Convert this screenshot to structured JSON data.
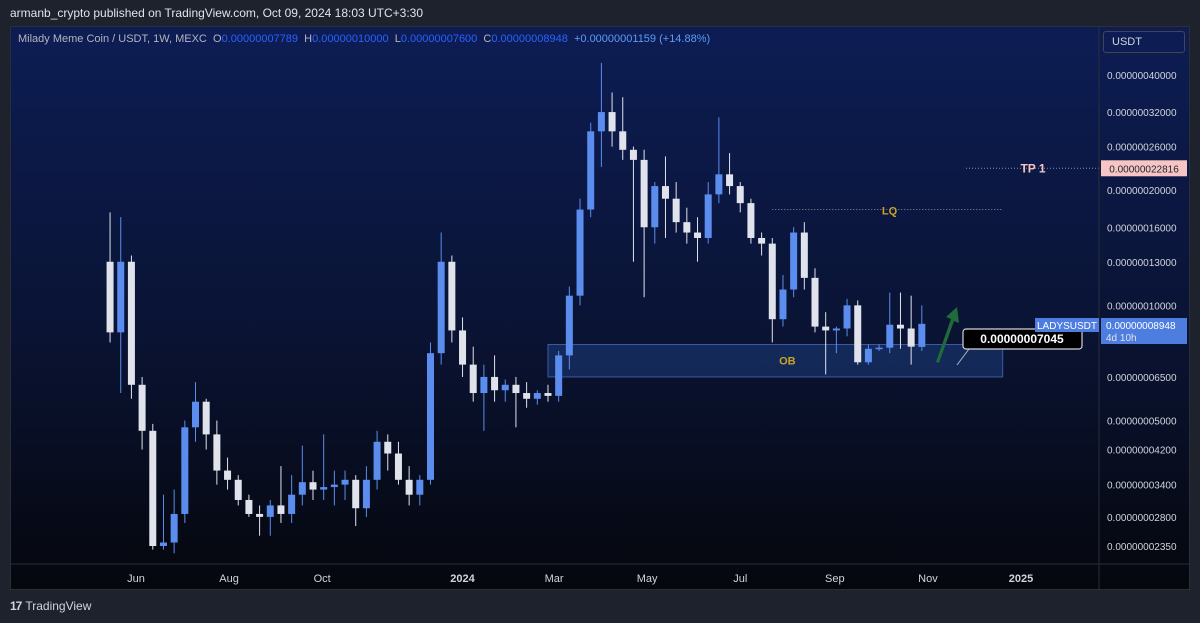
{
  "header": {
    "text": "armanb_crypto published on TradingView.com, Oct 09, 2024 18:03 UTC+3:30"
  },
  "legend": {
    "symbol": "Milady Meme Coin / USDT, 1W, MEXC",
    "open_label": "O",
    "open": "0.00000007789",
    "high_label": "H",
    "high": "0.00000010000",
    "low_label": "L",
    "low": "0.00000007600",
    "close_label": "C",
    "close": "0.00000008948",
    "change": "+0.00000001159 (+14.88%)"
  },
  "currency_button": "USDT",
  "footer": {
    "logo_mark": "17",
    "brand": "TradingView"
  },
  "colors": {
    "up": "#5b8def",
    "down": "#e0e3eb",
    "ob_zone": "#1c3d7a",
    "tp_label": "#f7c6c4",
    "arrow": "#1f6b3a"
  },
  "chart_data": {
    "type": "candlestick",
    "scale": "log",
    "y_ticks": [
      "0.00000040000",
      "0.00000032000",
      "0.00000026000",
      "0.00000020000",
      "0.00000016000",
      "0.00000013000",
      "0.00000010000",
      "0.00000006500",
      "0.00000005000",
      "0.00000004200",
      "0.00000003400",
      "0.00000002800",
      "0.00000002350"
    ],
    "y_tick_values": [
      4e-07,
      3.2e-07,
      2.6e-07,
      2e-07,
      1.6e-07,
      1.3e-07,
      1e-07,
      6.5e-08,
      5e-08,
      4.2e-08,
      3.4e-08,
      2.8e-08,
      2.35e-08
    ],
    "x_ticks": [
      "Jun",
      "Aug",
      "Oct",
      "2024",
      "Mar",
      "May",
      "Jul",
      "Sep",
      "Nov",
      "2025"
    ],
    "x_tick_dates": [
      "2023-06-01",
      "2023-08-01",
      "2023-10-01",
      "2024-01-01",
      "2024-03-01",
      "2024-05-01",
      "2024-07-01",
      "2024-09-01",
      "2024-11-01",
      "2025-01-01"
    ],
    "candles": [
      {
        "t": "2023-05-15",
        "o": 1.3e-07,
        "h": 1.75e-07,
        "l": 8e-08,
        "c": 8.5e-08
      },
      {
        "t": "2023-05-22",
        "o": 8.5e-08,
        "h": 1.7e-07,
        "l": 5.9e-08,
        "c": 1.3e-07
      },
      {
        "t": "2023-05-29",
        "o": 1.3e-07,
        "h": 1.35e-07,
        "l": 5.7e-08,
        "c": 6.2e-08
      },
      {
        "t": "2023-06-05",
        "o": 6.2e-08,
        "h": 6.5e-08,
        "l": 4.2e-08,
        "c": 4.7e-08
      },
      {
        "t": "2023-06-12",
        "o": 4.7e-08,
        "h": 4.9e-08,
        "l": 2.3e-08,
        "c": 2.35e-08
      },
      {
        "t": "2023-06-19",
        "o": 2.35e-08,
        "h": 3.2e-08,
        "l": 2.3e-08,
        "c": 2.4e-08
      },
      {
        "t": "2023-06-26",
        "o": 2.4e-08,
        "h": 3.3e-08,
        "l": 2.25e-08,
        "c": 2.85e-08
      },
      {
        "t": "2023-07-03",
        "o": 2.85e-08,
        "h": 5e-08,
        "l": 2.7e-08,
        "c": 4.8e-08
      },
      {
        "t": "2023-07-10",
        "o": 4.8e-08,
        "h": 6.3e-08,
        "l": 4.4e-08,
        "c": 5.6e-08
      },
      {
        "t": "2023-07-17",
        "o": 5.6e-08,
        "h": 5.7e-08,
        "l": 4.2e-08,
        "c": 4.6e-08
      },
      {
        "t": "2023-07-24",
        "o": 4.6e-08,
        "h": 5e-08,
        "l": 3.4e-08,
        "c": 3.7e-08
      },
      {
        "t": "2023-07-31",
        "o": 3.7e-08,
        "h": 4e-08,
        "l": 3.3e-08,
        "c": 3.5e-08
      },
      {
        "t": "2023-08-07",
        "o": 3.5e-08,
        "h": 3.6e-08,
        "l": 3e-08,
        "c": 3.1e-08
      },
      {
        "t": "2023-08-14",
        "o": 3.1e-08,
        "h": 3.2e-08,
        "l": 2.8e-08,
        "c": 2.85e-08
      },
      {
        "t": "2023-08-21",
        "o": 2.85e-08,
        "h": 3e-08,
        "l": 2.5e-08,
        "c": 2.8e-08
      },
      {
        "t": "2023-08-28",
        "o": 2.8e-08,
        "h": 3.1e-08,
        "l": 2.5e-08,
        "c": 3e-08
      },
      {
        "t": "2023-09-04",
        "o": 3e-08,
        "h": 3.8e-08,
        "l": 2.7e-08,
        "c": 2.85e-08
      },
      {
        "t": "2023-09-11",
        "o": 2.85e-08,
        "h": 3.6e-08,
        "l": 2.7e-08,
        "c": 3.2e-08
      },
      {
        "t": "2023-09-18",
        "o": 3.2e-08,
        "h": 4.3e-08,
        "l": 3e-08,
        "c": 3.45e-08
      },
      {
        "t": "2023-09-25",
        "o": 3.45e-08,
        "h": 3.7e-08,
        "l": 3.1e-08,
        "c": 3.3e-08
      },
      {
        "t": "2023-10-02",
        "o": 3.3e-08,
        "h": 4.6e-08,
        "l": 3.1e-08,
        "c": 3.35e-08
      },
      {
        "t": "2023-10-09",
        "o": 3.35e-08,
        "h": 3.7e-08,
        "l": 3e-08,
        "c": 3.4e-08
      },
      {
        "t": "2023-10-16",
        "o": 3.4e-08,
        "h": 3.7e-08,
        "l": 3.1e-08,
        "c": 3.5e-08
      },
      {
        "t": "2023-10-23",
        "o": 3.5e-08,
        "h": 3.6e-08,
        "l": 2.65e-08,
        "c": 2.95e-08
      },
      {
        "t": "2023-10-30",
        "o": 2.95e-08,
        "h": 3.8e-08,
        "l": 2.8e-08,
        "c": 3.5e-08
      },
      {
        "t": "2023-11-06",
        "o": 3.5e-08,
        "h": 4.7e-08,
        "l": 3.3e-08,
        "c": 4.4e-08
      },
      {
        "t": "2023-11-13",
        "o": 4.4e-08,
        "h": 4.6e-08,
        "l": 3.7e-08,
        "c": 4.1e-08
      },
      {
        "t": "2023-11-20",
        "o": 4.1e-08,
        "h": 4.4e-08,
        "l": 3.4e-08,
        "c": 3.5e-08
      },
      {
        "t": "2023-11-27",
        "o": 3.5e-08,
        "h": 3.8e-08,
        "l": 3e-08,
        "c": 3.2e-08
      },
      {
        "t": "2023-12-04",
        "o": 3.2e-08,
        "h": 3.6e-08,
        "l": 3e-08,
        "c": 3.5e-08
      },
      {
        "t": "2023-12-11",
        "o": 3.5e-08,
        "h": 8e-08,
        "l": 3.4e-08,
        "c": 7.5e-08
      },
      {
        "t": "2023-12-18",
        "o": 7.5e-08,
        "h": 1.55e-07,
        "l": 7e-08,
        "c": 1.3e-07
      },
      {
        "t": "2023-12-25",
        "o": 1.3e-07,
        "h": 1.35e-07,
        "l": 8e-08,
        "c": 8.6e-08
      },
      {
        "t": "2024-01-01",
        "o": 8.6e-08,
        "h": 9.3e-08,
        "l": 6.5e-08,
        "c": 7e-08
      },
      {
        "t": "2024-01-08",
        "o": 7e-08,
        "h": 7.8e-08,
        "l": 5.6e-08,
        "c": 5.9e-08
      },
      {
        "t": "2024-01-15",
        "o": 5.9e-08,
        "h": 7e-08,
        "l": 4.7e-08,
        "c": 6.5e-08
      },
      {
        "t": "2024-01-22",
        "o": 6.5e-08,
        "h": 7.4e-08,
        "l": 5.6e-08,
        "c": 6e-08
      },
      {
        "t": "2024-01-29",
        "o": 6e-08,
        "h": 6.4e-08,
        "l": 5.6e-08,
        "c": 6.2e-08
      },
      {
        "t": "2024-02-05",
        "o": 6.2e-08,
        "h": 6.5e-08,
        "l": 4.8e-08,
        "c": 5.9e-08
      },
      {
        "t": "2024-02-12",
        "o": 5.9e-08,
        "h": 6.3e-08,
        "l": 5.4e-08,
        "c": 5.7e-08
      },
      {
        "t": "2024-02-19",
        "o": 5.7e-08,
        "h": 6e-08,
        "l": 5.5e-08,
        "c": 5.9e-08
      },
      {
        "t": "2024-02-26",
        "o": 5.9e-08,
        "h": 6.2e-08,
        "l": 5.6e-08,
        "c": 5.8e-08
      },
      {
        "t": "2024-03-04",
        "o": 5.8e-08,
        "h": 7.6e-08,
        "l": 5.6e-08,
        "c": 7.4e-08
      },
      {
        "t": "2024-03-11",
        "o": 7.4e-08,
        "h": 1.12e-07,
        "l": 6.8e-08,
        "c": 1.06e-07
      },
      {
        "t": "2024-03-18",
        "o": 1.06e-07,
        "h": 1.9e-07,
        "l": 1e-07,
        "c": 1.78e-07
      },
      {
        "t": "2024-03-25",
        "o": 1.78e-07,
        "h": 3e-07,
        "l": 1.7e-07,
        "c": 2.85e-07
      },
      {
        "t": "2024-04-01",
        "o": 2.85e-07,
        "h": 4.3e-07,
        "l": 2.3e-07,
        "c": 3.2e-07
      },
      {
        "t": "2024-04-08",
        "o": 3.2e-07,
        "h": 3.6e-07,
        "l": 2.6e-07,
        "c": 2.85e-07
      },
      {
        "t": "2024-04-15",
        "o": 2.85e-07,
        "h": 3.5e-07,
        "l": 2.4e-07,
        "c": 2.55e-07
      },
      {
        "t": "2024-04-22",
        "o": 2.55e-07,
        "h": 2.6e-07,
        "l": 1.3e-07,
        "c": 2.4e-07
      },
      {
        "t": "2024-04-29",
        "o": 2.4e-07,
        "h": 2.55e-07,
        "l": 1.05e-07,
        "c": 1.6e-07
      },
      {
        "t": "2024-05-06",
        "o": 1.6e-07,
        "h": 2.1e-07,
        "l": 1.45e-07,
        "c": 2.05e-07
      },
      {
        "t": "2024-05-13",
        "o": 2.05e-07,
        "h": 2.45e-07,
        "l": 1.5e-07,
        "c": 1.9e-07
      },
      {
        "t": "2024-05-20",
        "o": 1.9e-07,
        "h": 2.1e-07,
        "l": 1.55e-07,
        "c": 1.65e-07
      },
      {
        "t": "2024-05-27",
        "o": 1.65e-07,
        "h": 1.8e-07,
        "l": 1.45e-07,
        "c": 1.55e-07
      },
      {
        "t": "2024-06-03",
        "o": 1.55e-07,
        "h": 1.7e-07,
        "l": 1.3e-07,
        "c": 1.5e-07
      },
      {
        "t": "2024-06-10",
        "o": 1.5e-07,
        "h": 2.1e-07,
        "l": 1.45e-07,
        "c": 1.95e-07
      },
      {
        "t": "2024-06-17",
        "o": 1.95e-07,
        "h": 3.1e-07,
        "l": 1.85e-07,
        "c": 2.2e-07
      },
      {
        "t": "2024-06-24",
        "o": 2.2e-07,
        "h": 2.5e-07,
        "l": 1.95e-07,
        "c": 2.05e-07
      },
      {
        "t": "2024-07-01",
        "o": 2.05e-07,
        "h": 2.1e-07,
        "l": 1.75e-07,
        "c": 1.85e-07
      },
      {
        "t": "2024-07-08",
        "o": 1.85e-07,
        "h": 1.9e-07,
        "l": 1.45e-07,
        "c": 1.5e-07
      },
      {
        "t": "2024-07-15",
        "o": 1.5e-07,
        "h": 1.55e-07,
        "l": 1.35e-07,
        "c": 1.45e-07
      },
      {
        "t": "2024-07-22",
        "o": 1.45e-07,
        "h": 1.5e-07,
        "l": 8e-08,
        "c": 9.2e-08
      },
      {
        "t": "2024-07-29",
        "o": 9.2e-08,
        "h": 1.2e-07,
        "l": 8.8e-08,
        "c": 1.1e-07
      },
      {
        "t": "2024-08-05",
        "o": 1.1e-07,
        "h": 1.6e-07,
        "l": 1.05e-07,
        "c": 1.55e-07
      },
      {
        "t": "2024-08-12",
        "o": 1.55e-07,
        "h": 1.65e-07,
        "l": 1.1e-07,
        "c": 1.18e-07
      },
      {
        "t": "2024-08-19",
        "o": 1.18e-07,
        "h": 1.25e-07,
        "l": 8.5e-08,
        "c": 8.8e-08
      },
      {
        "t": "2024-08-26",
        "o": 8.8e-08,
        "h": 9.6e-08,
        "l": 6.6e-08,
        "c": 8.6e-08
      },
      {
        "t": "2024-09-02",
        "o": 8.6e-08,
        "h": 8.8e-08,
        "l": 7.5e-08,
        "c": 8.7e-08
      },
      {
        "t": "2024-09-09",
        "o": 8.7e-08,
        "h": 1.04e-07,
        "l": 8.3e-08,
        "c": 1e-07
      },
      {
        "t": "2024-09-16",
        "o": 1e-07,
        "h": 1.03e-07,
        "l": 7e-08,
        "c": 7.1e-08
      },
      {
        "t": "2024-09-23",
        "o": 7.1e-08,
        "h": 7.9e-08,
        "l": 7e-08,
        "c": 7.7e-08
      },
      {
        "t": "2024-09-30",
        "o": 7.7e-08,
        "h": 7.9e-08,
        "l": 7.6e-08,
        "c": 7.75e-08
      },
      {
        "t": "2024-10-07",
        "o": 7.75e-08,
        "h": 1.08e-07,
        "l": 7.5e-08,
        "c": 8.9e-08
      },
      {
        "t": "2024-10-14",
        "o": 8.9e-08,
        "h": 1.08e-07,
        "l": 7.7e-08,
        "c": 8.7e-08
      },
      {
        "t": "2024-10-21",
        "o": 8.7e-08,
        "h": 1.06e-07,
        "l": 7e-08,
        "c": 7.8e-08
      },
      {
        "t": "2024-10-28",
        "o": 7.789e-08,
        "h": 1e-07,
        "l": 7.6e-08,
        "c": 8.948e-08
      }
    ],
    "annotations": {
      "tp_label": "TP 1",
      "tp_price": "0.00000022816",
      "tp_value": 2.2816e-07,
      "lq_label": "LQ",
      "lq_value": 1.78e-07,
      "ob_label": "OB",
      "ob_top": 7.9e-08,
      "ob_bottom": 6.5e-08,
      "ob_start": "2024-02-26",
      "ob_end": "2024-12-20",
      "callout_price": "0.00000007045",
      "callout_value": 7.045e-08,
      "last_symbol": "LADYSUSDT",
      "last_price": "0.00000008948",
      "countdown": "4d 10h"
    }
  }
}
